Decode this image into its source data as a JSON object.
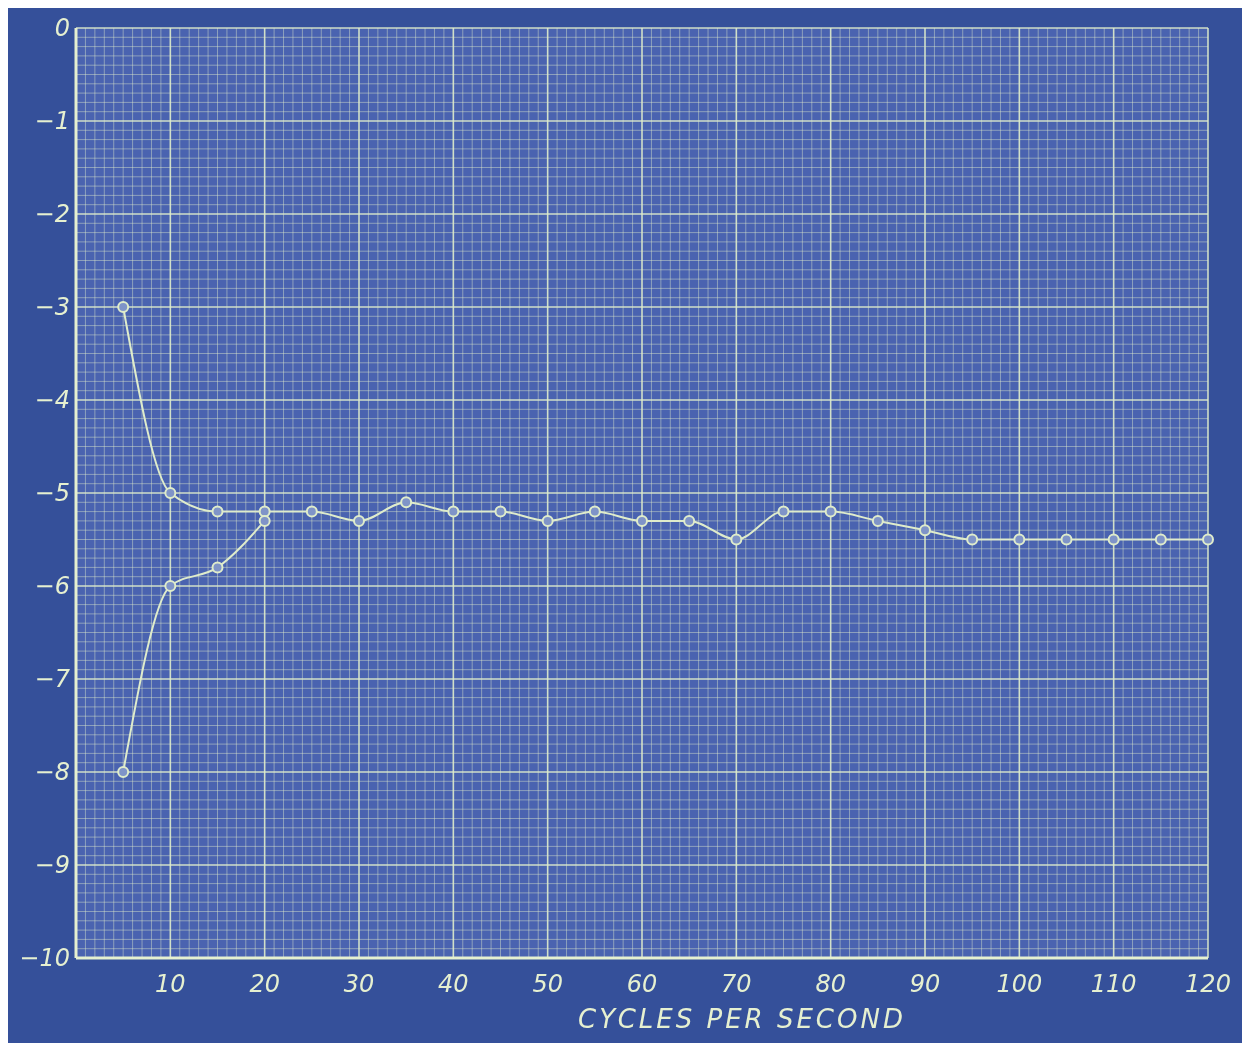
{
  "chart_data": {
    "type": "line",
    "xlabel": "CYCLES PER SECOND",
    "xlim": [
      0,
      120
    ],
    "xticks": [
      10,
      20,
      30,
      40,
      50,
      60,
      70,
      80,
      90,
      100,
      110,
      120
    ],
    "ylim": [
      -10,
      0
    ],
    "yticks": [
      0,
      -1,
      -2,
      -3,
      -4,
      -5,
      -6,
      -7,
      -8,
      -9,
      -10
    ],
    "grid": true,
    "marker": "circle",
    "line_style": "solid",
    "series": [
      {
        "color": "#dfeccb",
        "x": [
          5,
          10,
          15,
          20,
          25,
          30,
          35,
          40,
          45,
          50,
          55,
          60,
          65,
          70,
          75,
          80,
          85,
          90,
          95,
          100,
          105,
          110,
          115,
          120
        ],
        "values": [
          -3,
          -5,
          -5.2,
          -5.2,
          -5.2,
          -5.3,
          -5.1,
          -5.2,
          -5.2,
          -5.3,
          -5.2,
          -5.3,
          -5.3,
          -5.5,
          -5.2,
          -5.2,
          -5.3,
          -5.4,
          -5.5,
          -5.5,
          -5.5,
          -5.5,
          -5.5,
          -5.5
        ]
      },
      {
        "color": "#dfeccb",
        "x": [
          5,
          10,
          15,
          20
        ],
        "values": [
          -8,
          -6,
          -5.8,
          -5.3
        ]
      }
    ]
  }
}
